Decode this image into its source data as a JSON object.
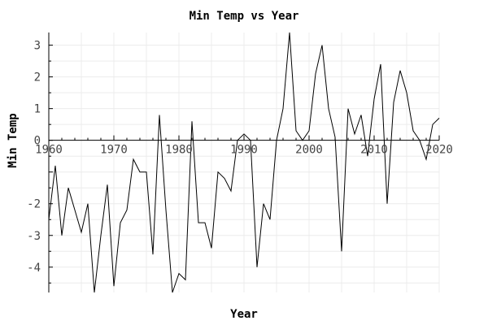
{
  "chart_data": {
    "type": "line",
    "title": "Min Temp vs Year",
    "xlabel": "Year",
    "ylabel": "Min Temp",
    "xlim": [
      1960,
      2020
    ],
    "ylim": [
      -4.8,
      3.4
    ],
    "xticks": [
      1960,
      1970,
      1980,
      1990,
      2000,
      2010,
      2020
    ],
    "xtick_labels": [
      "1960",
      "1970",
      "1980",
      "1990",
      "2000",
      "2010",
      "2020"
    ],
    "yticks": [
      -4,
      -3,
      -2,
      0,
      1,
      2,
      3
    ],
    "ytick_labels": [
      "-4",
      "-3",
      "-2",
      "0",
      "1",
      "2",
      "3"
    ],
    "grid": true,
    "series": [
      {
        "x": [
          1960,
          1961,
          1962,
          1963,
          1964,
          1965,
          1966,
          1967,
          1968,
          1969,
          1970,
          1971,
          1972,
          1973,
          1974,
          1975,
          1976,
          1977,
          1978,
          1979,
          1980,
          1981,
          1982,
          1983,
          1984,
          1985,
          1986,
          1987,
          1988,
          1989,
          1990,
          1991,
          1992,
          1993,
          1994,
          1995,
          1996,
          1997,
          1998,
          1999,
          2000,
          2001,
          2002,
          2003,
          2004,
          2005,
          2006,
          2007,
          2008,
          2009,
          2010,
          2011,
          2012,
          2013,
          2014,
          2015,
          2016,
          2017,
          2018,
          2019,
          2020
        ],
        "y": [
          -2.5,
          -0.8,
          -3.0,
          -1.5,
          -2.2,
          -2.9,
          -2.0,
          -4.8,
          -3.0,
          -1.4,
          -4.6,
          -2.6,
          -2.2,
          -0.6,
          -1.0,
          -1.0,
          -3.6,
          0.8,
          -2.2,
          -4.8,
          -4.2,
          -4.4,
          0.6,
          -2.6,
          -2.6,
          -3.4,
          -1.0,
          -1.2,
          -1.6,
          0.0,
          0.2,
          0.0,
          -4.0,
          -2.0,
          -2.5,
          0.0,
          1.0,
          3.4,
          0.3,
          0.0,
          0.3,
          2.1,
          3.0,
          1.0,
          0.1,
          -3.5,
          1.0,
          0.2,
          0.8,
          -0.5,
          1.3,
          2.4,
          -2.0,
          1.2,
          2.2,
          1.5,
          0.3,
          0.0,
          -0.6,
          0.5,
          0.7
        ]
      }
    ]
  }
}
